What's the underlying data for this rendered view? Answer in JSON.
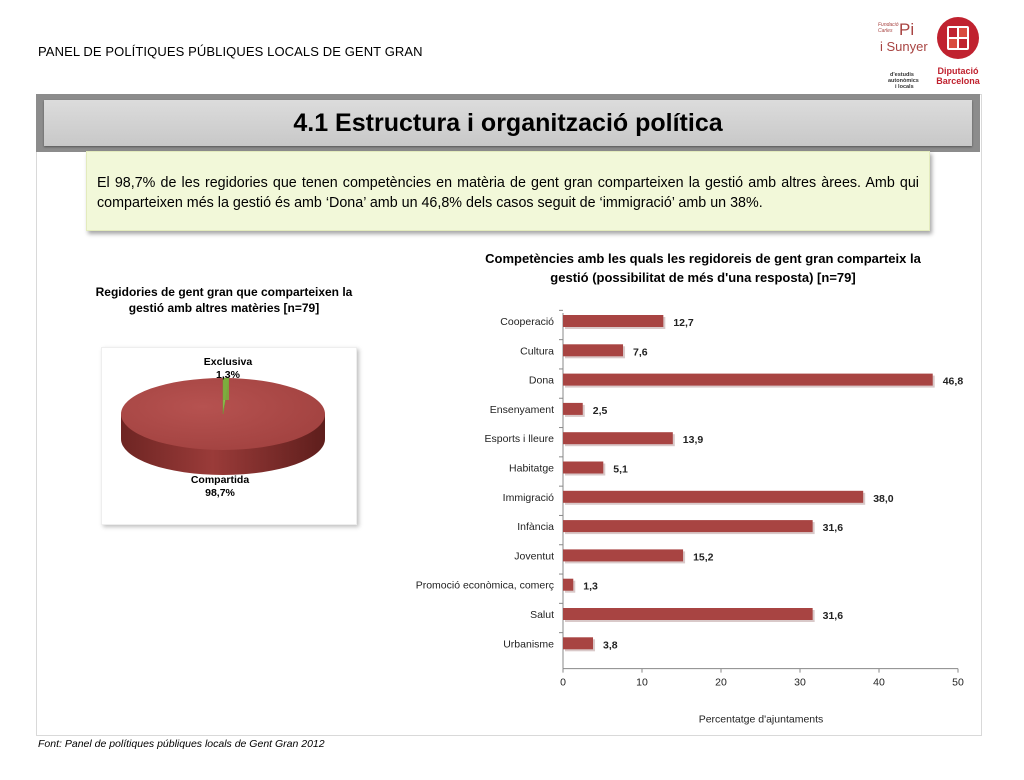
{
  "header": {
    "title": "PANEL DE POLÍTIQUES PÚBLIQUES LOCALS DE GENT GRAN"
  },
  "logos": {
    "pisunyer": {
      "line1": "Fundació",
      "line2": "Carles",
      "line3": "Pi",
      "line4": "i Sunyer",
      "line5": "d'estudis",
      "line6": "autonòmics",
      "line7": "i locals"
    },
    "diba": {
      "line1": "Diputació",
      "line2": "Barcelona"
    }
  },
  "section": {
    "title": "4.1 Estructura i organització política"
  },
  "note": {
    "text": "El 98,7% de les regidories que tenen competències en matèria de gent gran comparteixen la gestió amb altres àrees. Amb qui comparteixen més la gestió és amb ‘Dona’ amb un 46,8% dels casos seguit de ‘immigració’ amb un 38%."
  },
  "colors": {
    "bar": "#a84442",
    "pie_main": "#a84442",
    "pie_small": "#8fc14f",
    "note_bg": "#f2f8d9",
    "title_bar": "#8c8c8c"
  },
  "chart_data": [
    {
      "type": "pie",
      "title": "Regidories de gent gran que comparteixen la gestió amb altres matèries [n=79]",
      "slices": [
        {
          "label": "Exclusiva",
          "value": 1.3,
          "display": "1,3%"
        },
        {
          "label": "Compartida",
          "value": 98.7,
          "display": "98,7%"
        }
      ]
    },
    {
      "type": "bar",
      "orientation": "horizontal",
      "title": "Competències amb les quals les regidoreis de gent gran comparteix la gestió (possibilitat de més d'una resposta) [n=79]",
      "categories": [
        "Cooperació",
        "Cultura",
        "Dona",
        "Ensenyament",
        "Esports i lleure",
        "Habitatge",
        "Immigració",
        "Infància",
        "Joventut",
        "Promoció econòmica, comerç",
        "Salut",
        "Urbanisme"
      ],
      "values": [
        12.7,
        7.6,
        46.8,
        2.5,
        13.9,
        5.1,
        38.0,
        31.6,
        15.2,
        1.3,
        31.6,
        3.8
      ],
      "value_labels": [
        "12,7",
        "7,6",
        "46,8",
        "2,5",
        "13,9",
        "5,1",
        "38,0",
        "31,6",
        "15,2",
        "1,3",
        "31,6",
        "3,8"
      ],
      "xlabel": "Percentatge d'ajuntaments",
      "ylabel": "",
      "xlim": [
        0,
        50
      ],
      "xticks": [
        0,
        10,
        20,
        30,
        40,
        50
      ],
      "grid": false
    }
  ],
  "footer": {
    "source": "Font: Panel de  polítiques públiques locals de Gent Gran 2012"
  }
}
